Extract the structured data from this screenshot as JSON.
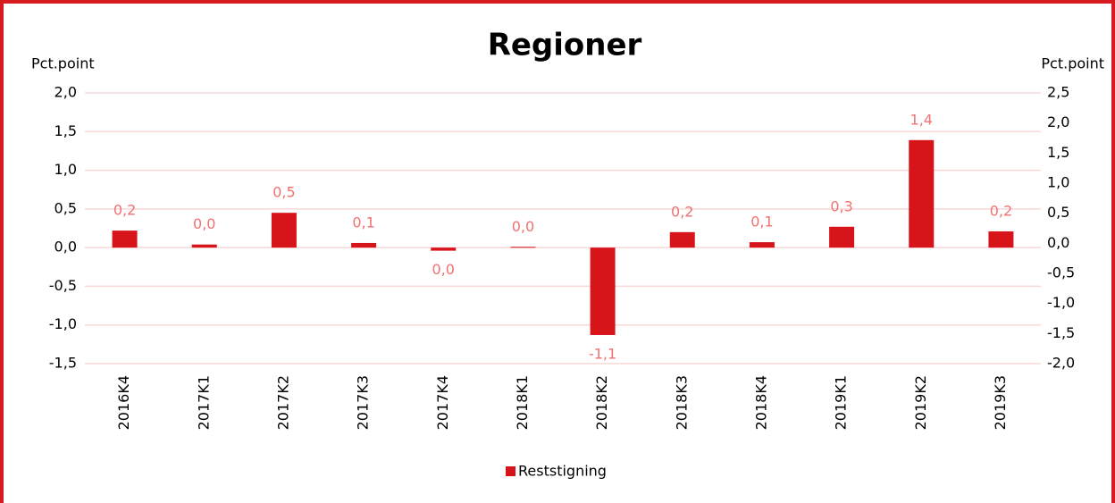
{
  "chart_data": {
    "type": "bar",
    "title": "Regioner",
    "y_label": "Pct.point",
    "y2_label": "Pct.point",
    "categories": [
      "2016K4",
      "2017K1",
      "2017K2",
      "2017K3",
      "2017K4",
      "2018K1",
      "2018K2",
      "2018K3",
      "2018K4",
      "2019K1",
      "2019K2",
      "2019K3"
    ],
    "series": [
      {
        "name": "Reststigning",
        "color": "#d7141a",
        "values": [
          0.22,
          0.04,
          0.45,
          0.06,
          -0.04,
          0.01,
          -1.13,
          0.2,
          0.07,
          0.27,
          1.39,
          0.21
        ],
        "value_labels": [
          "0,2",
          "0,0",
          "0,5",
          "0,1",
          "0,0",
          "0,0",
          "-1,1",
          "0,2",
          "0,1",
          "0,3",
          "1,4",
          "0,2"
        ]
      }
    ],
    "ylim": [
      -1.5,
      2.0
    ],
    "yticks": [
      {
        "value": -1.5,
        "label": "-1,5"
      },
      {
        "value": -1.0,
        "label": "-1,0"
      },
      {
        "value": -0.5,
        "label": "-0,5"
      },
      {
        "value": 0,
        "label": "0,0"
      },
      {
        "value": 0.5,
        "label": "0,5"
      },
      {
        "value": 1.0,
        "label": "1,0"
      },
      {
        "value": 1.5,
        "label": "1,5"
      },
      {
        "value": 2.0,
        "label": "2,0"
      }
    ],
    "y2lim": [
      -2.0,
      2.5
    ],
    "y2ticks": [
      {
        "value": -2.0,
        "label": "-2,0"
      },
      {
        "value": -1.5,
        "label": "-1,5"
      },
      {
        "value": -1.0,
        "label": "-1,0"
      },
      {
        "value": -0.5,
        "label": "-0,5"
      },
      {
        "value": 0,
        "label": "0,0"
      },
      {
        "value": 0.5,
        "label": "0,5"
      },
      {
        "value": 1.0,
        "label": "1,0"
      },
      {
        "value": 1.5,
        "label": "1,5"
      },
      {
        "value": 2.0,
        "label": "2,0"
      },
      {
        "value": 2.5,
        "label": "2,5"
      }
    ],
    "grid": true,
    "legend": "bottom",
    "value_label_color": "#f07272"
  }
}
